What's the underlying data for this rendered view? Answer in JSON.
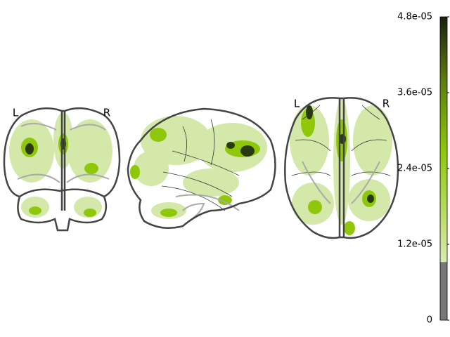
{
  "views": {
    "coronal": {
      "left_label": "L",
      "right_label": "R"
    },
    "axial": {
      "left_label": "L",
      "right_label": "R"
    }
  },
  "colorbar": {
    "lim": [
      0,
      4.8e-05
    ],
    "threshold": 9.2e-06,
    "ticks": [
      0,
      {
        "value": 1.2e-05,
        "label": "1.2e-05"
      },
      {
        "value": 2.4e-05,
        "label": "2.4e-05"
      },
      {
        "value": 3.6e-05,
        "label": "3.6e-05"
      },
      {
        "value": 4.8e-05,
        "label": "4.8e-05"
      }
    ]
  }
}
